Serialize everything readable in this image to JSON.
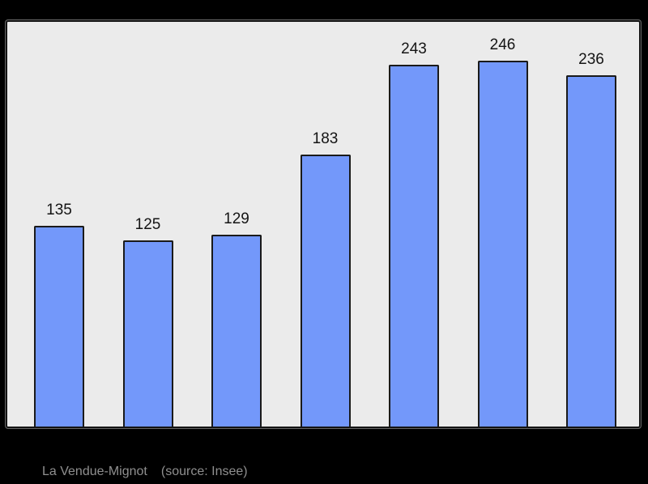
{
  "chart_data": {
    "type": "bar",
    "values": [
      135,
      125,
      129,
      183,
      243,
      246,
      236
    ],
    "bar_labels": [
      "135",
      "125",
      "129",
      "183",
      "243",
      "246",
      "236"
    ],
    "title": "",
    "xlabel": "",
    "ylabel": "",
    "ylim": [
      0,
      272
    ],
    "grid": false,
    "axes_visible": false,
    "legend": false,
    "colors": {
      "bar_fill": "#7398fa",
      "bar_border": "#1a1a1a",
      "panel_background": "#ebebeb",
      "panel_border": "#141414",
      "value_label": "#141414",
      "page_background": "#000000",
      "footer_text": "#8f8f8f"
    }
  },
  "footer": {
    "title": "La Vendue-Mignot",
    "source": "(source: Insee)"
  }
}
